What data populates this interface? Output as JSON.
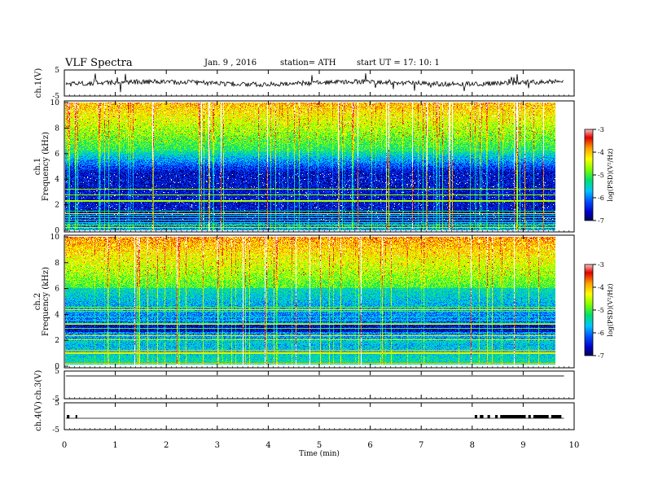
{
  "header": {
    "title": "VLF  Spectra",
    "date": "Jan.  9  , 2016",
    "station": "station= ATH",
    "start": "start  UT  =    17: 10: 1"
  },
  "chart_data": [
    {
      "type": "line",
      "panel": "ch1-waveform",
      "ylabel": "ch.1(V)",
      "ylim": [
        -5,
        5
      ],
      "yticks": [
        "5",
        "-5"
      ],
      "xlim": [
        0,
        10
      ],
      "baseline": 0
    },
    {
      "type": "heatmap",
      "panel": "ch1-spectrogram",
      "ylabel_ch": "ch.1",
      "ylabel": "Frequency  (kHz)",
      "ylim": [
        0,
        10
      ],
      "yticks": [
        "0",
        "2",
        "4",
        "6",
        "8",
        "10"
      ],
      "xlim": [
        0,
        10
      ],
      "data_xmax": 9.8,
      "colorbar": {
        "label": "log(PSD)(V²/Hz)",
        "ticks": [
          "-3",
          "-4",
          "-5",
          "-6",
          "-7"
        ],
        "range": [
          -7,
          -3
        ]
      }
    },
    {
      "type": "heatmap",
      "panel": "ch2-spectrogram",
      "ylabel_ch": "ch.2",
      "ylabel": "Frequency  (kHz)",
      "ylim": [
        0,
        10
      ],
      "yticks": [
        "0",
        "2",
        "4",
        "6",
        "8",
        "10"
      ],
      "xlim": [
        0,
        10
      ],
      "data_xmax": 9.8,
      "colorbar": {
        "label": "log(PSD)(V²/Hz)",
        "ticks": [
          "-3",
          "-4",
          "-5",
          "-6",
          "-7"
        ],
        "range": [
          -7,
          -3
        ]
      }
    },
    {
      "type": "line",
      "panel": "ch3-waveform",
      "ylabel": "ch.3(V)",
      "ylim": [
        -5,
        5
      ],
      "yticks": [
        "5",
        "-5"
      ],
      "xlim": [
        0,
        10
      ]
    },
    {
      "type": "line",
      "panel": "ch4-waveform",
      "ylabel": "ch.4(V)",
      "ylim": [
        -5,
        5
      ],
      "yticks": [
        "5",
        "-5"
      ],
      "xlim": [
        0,
        10
      ]
    }
  ],
  "x_axis": {
    "label": "Time  (min)",
    "ticks": [
      "0",
      "1",
      "2",
      "3",
      "4",
      "5",
      "6",
      "7",
      "8",
      "9",
      "10"
    ],
    "range": [
      0,
      10
    ]
  },
  "colormap": [
    "#000a3a",
    "#0000c8",
    "#0050ff",
    "#00c8ff",
    "#00e070",
    "#80ff00",
    "#ffff00",
    "#ffa000",
    "#e00000",
    "#ffffff"
  ]
}
